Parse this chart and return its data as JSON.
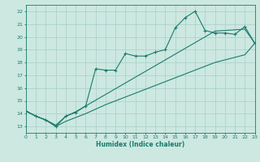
{
  "xlabel": "Humidex (Indice chaleur)",
  "x_data": [
    0,
    1,
    2,
    3,
    4,
    5,
    6,
    7,
    8,
    9,
    10,
    11,
    12,
    13,
    14,
    15,
    16,
    17,
    18,
    19,
    20,
    21,
    22,
    23
  ],
  "y_main": [
    14.2,
    13.8,
    13.5,
    13.0,
    13.8,
    14.1,
    14.6,
    17.5,
    17.4,
    17.4,
    18.7,
    18.5,
    18.5,
    18.8,
    19.0,
    20.7,
    21.5,
    22.0,
    20.5,
    20.3,
    20.3,
    20.2,
    20.8,
    19.5
  ],
  "y_upper": [
    14.2,
    13.8,
    13.5,
    13.1,
    13.8,
    14.15,
    14.6,
    15.05,
    15.5,
    15.95,
    16.4,
    16.85,
    17.3,
    17.75,
    18.2,
    18.65,
    19.1,
    19.55,
    20.0,
    20.45,
    20.5,
    20.55,
    20.6,
    19.5
  ],
  "y_lower": [
    14.2,
    13.8,
    13.5,
    13.0,
    13.4,
    13.7,
    14.0,
    14.35,
    14.7,
    15.0,
    15.3,
    15.6,
    15.9,
    16.2,
    16.5,
    16.8,
    17.1,
    17.4,
    17.7,
    18.0,
    18.2,
    18.4,
    18.6,
    19.5
  ],
  "xlim": [
    0,
    23
  ],
  "ylim": [
    12.5,
    22.5
  ],
  "yticks": [
    13,
    14,
    15,
    16,
    17,
    18,
    19,
    20,
    21,
    22
  ],
  "xticks": [
    0,
    1,
    2,
    3,
    4,
    5,
    6,
    7,
    8,
    9,
    10,
    11,
    12,
    13,
    14,
    15,
    16,
    17,
    18,
    19,
    20,
    21,
    22,
    23
  ],
  "line_color": "#1a7a6e",
  "bg_color": "#cce8e0",
  "grid_color": "#a8cfc8"
}
